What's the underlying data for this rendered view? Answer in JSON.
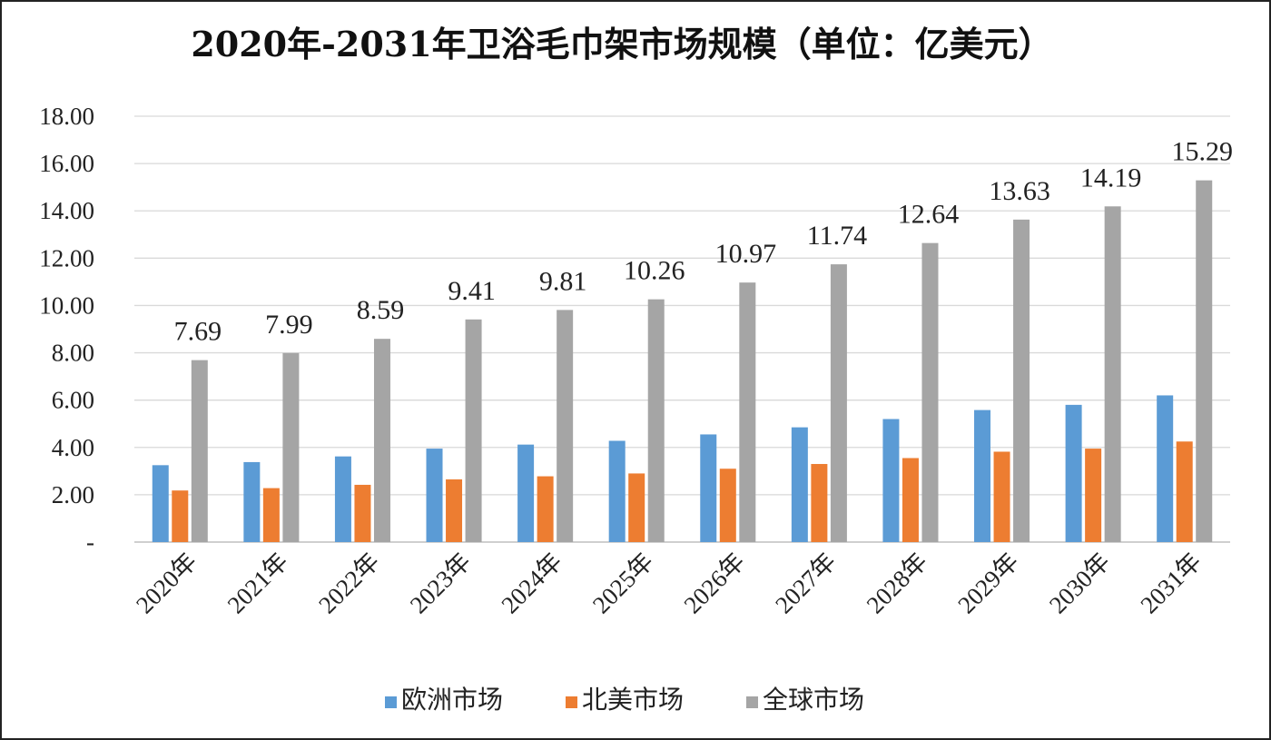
{
  "chart_data": {
    "type": "bar",
    "title": "2020年-2031年卫浴毛巾架市场规模（单位：亿美元）",
    "xlabel": "",
    "ylabel": "",
    "ylim": [
      0,
      18
    ],
    "yticks": [
      0,
      2,
      4,
      6,
      8,
      10,
      12,
      14,
      16,
      18
    ],
    "ytick_labels": [
      "-",
      "2.00",
      "4.00",
      "6.00",
      "8.00",
      "10.00",
      "12.00",
      "14.00",
      "16.00",
      "18.00"
    ],
    "grid": true,
    "legend_position": "bottom",
    "categories": [
      "2020年",
      "2021年",
      "2022年",
      "2023年",
      "2024年",
      "2025年",
      "2026年",
      "2027年",
      "2028年",
      "2029年",
      "2030年",
      "2031年"
    ],
    "series": [
      {
        "name": "欧洲市场",
        "color": "#5B9BD5",
        "values": [
          3.25,
          3.38,
          3.62,
          3.95,
          4.12,
          4.28,
          4.55,
          4.85,
          5.2,
          5.58,
          5.8,
          6.2
        ],
        "show_labels": false
      },
      {
        "name": "北美市场",
        "color": "#ED7D31",
        "values": [
          2.18,
          2.28,
          2.42,
          2.65,
          2.78,
          2.9,
          3.1,
          3.3,
          3.55,
          3.82,
          3.95,
          4.25
        ],
        "show_labels": false
      },
      {
        "name": "全球市场",
        "color": "#A5A5A5",
        "values": [
          7.69,
          7.99,
          8.59,
          9.41,
          9.81,
          10.26,
          10.97,
          11.74,
          12.64,
          13.63,
          14.19,
          15.29
        ],
        "labels": [
          "7.69",
          "7.99",
          "8.59",
          "9.41",
          "9.81",
          "10.26",
          "10.97",
          "11.74",
          "12.64",
          "13.63",
          "14.19",
          "15.29"
        ],
        "show_labels": true
      }
    ]
  },
  "colors": {
    "grid": "#D9D9D9",
    "axis": "#BFBFBF",
    "text": "#222222"
  }
}
